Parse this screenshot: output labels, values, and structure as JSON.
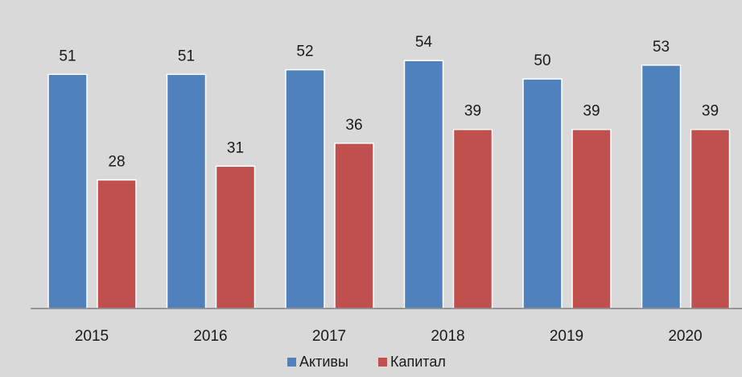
{
  "chart_data": {
    "type": "bar",
    "categories": [
      "2015",
      "2016",
      "2017",
      "2018",
      "2019",
      "2020"
    ],
    "series": [
      {
        "name": "Активы",
        "color": "#4f81bd",
        "values": [
          51,
          51,
          52,
          54,
          50,
          53
        ]
      },
      {
        "name": "Капитал",
        "color": "#c0504d",
        "values": [
          28,
          31,
          36,
          39,
          39,
          39
        ]
      }
    ],
    "title": "",
    "xlabel": "",
    "ylabel": "",
    "ylim": [
      0,
      60
    ],
    "grid": false,
    "legend": "bottom-center",
    "data_labels": true
  }
}
